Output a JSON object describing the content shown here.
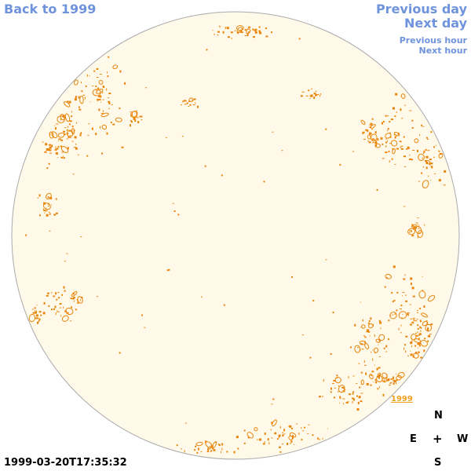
{
  "nav": {
    "back_label": "Back to 1999",
    "previous_day_label": "Previous day",
    "next_day_label": "Next day",
    "previous_hour_label": "Previous hour",
    "next_hour_label": "Next hour"
  },
  "image": {
    "year_marker": "1999",
    "timestamp": "1999-03-20T17:35:32"
  },
  "compass": {
    "north": "N",
    "east": "E",
    "center": "+",
    "west": "W",
    "south": "S"
  },
  "colors": {
    "disk_fill": "#fff9ea",
    "disk_border": "#aaaaaa",
    "contour": "#e8850a",
    "link": "#6f94dd",
    "year_marker": "#f0a020"
  }
}
